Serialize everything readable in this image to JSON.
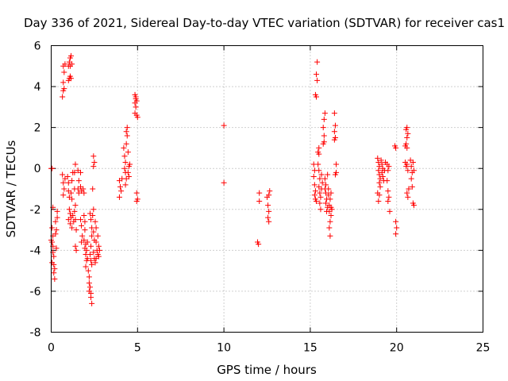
{
  "chart_data": {
    "type": "scatter",
    "title": "Day 336 of 2021, Sidereal Day-to-day VTEC variation (SDTVAR) for receiver cas1",
    "xlabel": "GPS time / hours",
    "ylabel": "SDTVAR / TECUs",
    "xlim": [
      0,
      25
    ],
    "ylim": [
      -8,
      6
    ],
    "xticks": [
      0,
      5,
      10,
      15,
      20,
      25
    ],
    "yticks": [
      -8,
      -6,
      -4,
      -2,
      0,
      2,
      4,
      6
    ],
    "xtick_labels": [
      "0",
      "5",
      "10",
      "15",
      "20",
      "25"
    ],
    "ytick_labels": [
      "-8",
      "-6",
      "-4",
      "-2",
      "0",
      "2",
      "4",
      "6"
    ],
    "grid": true,
    "marker": "plus",
    "color": "#ff0000",
    "series": [
      {
        "name": "SDTVAR",
        "points": [
          [
            0.0,
            0.0
          ],
          [
            0.05,
            0.0
          ],
          [
            0.1,
            -1.9
          ],
          [
            0.05,
            -2.9
          ],
          [
            0.1,
            -3.3
          ],
          [
            0.0,
            -3.5
          ],
          [
            0.05,
            -3.6
          ],
          [
            0.1,
            -3.8
          ],
          [
            0.1,
            -4.1
          ],
          [
            0.15,
            -4.3
          ],
          [
            0.05,
            -4.6
          ],
          [
            0.15,
            -4.7
          ],
          [
            0.2,
            -4.9
          ],
          [
            0.15,
            -5.1
          ],
          [
            0.2,
            -5.4
          ],
          [
            0.25,
            -2.6
          ],
          [
            0.3,
            -3.0
          ],
          [
            0.25,
            -3.2
          ],
          [
            0.3,
            -3.9
          ],
          [
            0.35,
            -2.4
          ],
          [
            0.35,
            -2.1
          ],
          [
            0.65,
            3.5
          ],
          [
            0.7,
            3.8
          ],
          [
            0.75,
            3.9
          ],
          [
            0.7,
            4.2
          ],
          [
            0.75,
            4.7
          ],
          [
            0.7,
            5.0
          ],
          [
            0.8,
            5.1
          ],
          [
            0.65,
            -0.3
          ],
          [
            0.7,
            -0.7
          ],
          [
            0.75,
            -1.0
          ],
          [
            0.7,
            -1.3
          ],
          [
            0.8,
            -0.5
          ],
          [
            1.0,
            4.3
          ],
          [
            1.05,
            4.4
          ],
          [
            1.1,
            4.5
          ],
          [
            1.0,
            5.0
          ],
          [
            1.05,
            5.2
          ],
          [
            1.1,
            5.4
          ],
          [
            1.15,
            5.5
          ],
          [
            1.1,
            5.0
          ],
          [
            1.2,
            5.1
          ],
          [
            1.15,
            4.4
          ],
          [
            0.95,
            -0.4
          ],
          [
            1.0,
            -0.7
          ],
          [
            1.0,
            -1.1
          ],
          [
            1.05,
            -1.4
          ],
          [
            1.05,
            -2.0
          ],
          [
            1.1,
            -2.2
          ],
          [
            1.0,
            -2.5
          ],
          [
            1.1,
            -2.7
          ],
          [
            1.15,
            -1.2
          ],
          [
            1.2,
            -1.5
          ],
          [
            1.15,
            -2.4
          ],
          [
            1.2,
            -2.9
          ],
          [
            1.25,
            -2.3
          ],
          [
            1.3,
            -2.6
          ],
          [
            1.25,
            -0.2
          ],
          [
            1.2,
            -0.6
          ],
          [
            1.35,
            -0.2
          ],
          [
            1.4,
            0.2
          ],
          [
            1.35,
            -1.0
          ],
          [
            1.4,
            -1.8
          ],
          [
            1.35,
            -2.1
          ],
          [
            1.4,
            -2.5
          ],
          [
            1.45,
            -3.0
          ],
          [
            1.4,
            -3.8
          ],
          [
            1.45,
            -4.0
          ],
          [
            1.55,
            -0.1
          ],
          [
            1.6,
            -0.6
          ],
          [
            1.55,
            -1.0
          ],
          [
            1.6,
            -1.2
          ],
          [
            1.7,
            -0.9
          ],
          [
            1.75,
            -1.1
          ],
          [
            1.7,
            -2.5
          ],
          [
            1.75,
            -2.8
          ],
          [
            1.8,
            -3.3
          ],
          [
            1.75,
            -3.6
          ],
          [
            1.7,
            -0.2
          ],
          [
            1.85,
            -1.0
          ],
          [
            1.9,
            -1.2
          ],
          [
            1.9,
            -2.3
          ],
          [
            1.95,
            -2.6
          ],
          [
            1.95,
            -3.0
          ],
          [
            1.9,
            -3.5
          ],
          [
            2.0,
            -3.7
          ],
          [
            1.95,
            -3.9
          ],
          [
            2.0,
            -4.2
          ],
          [
            2.05,
            -4.5
          ],
          [
            2.0,
            -4.8
          ],
          [
            2.1,
            -4.4
          ],
          [
            2.05,
            -4.0
          ],
          [
            2.1,
            -3.6
          ],
          [
            2.15,
            -5.0
          ],
          [
            2.2,
            -5.3
          ],
          [
            2.2,
            -5.6
          ],
          [
            2.25,
            -5.8
          ],
          [
            2.2,
            -6.0
          ],
          [
            2.3,
            -6.1
          ],
          [
            2.3,
            -6.3
          ],
          [
            2.35,
            -6.6
          ],
          [
            2.25,
            -4.2
          ],
          [
            2.3,
            -4.5
          ],
          [
            2.35,
            -4.7
          ],
          [
            2.3,
            -3.8
          ],
          [
            2.35,
            -3.3
          ],
          [
            2.25,
            -2.2
          ],
          [
            2.3,
            -2.5
          ],
          [
            2.35,
            -2.9
          ],
          [
            2.4,
            -1.0
          ],
          [
            2.45,
            -2.0
          ],
          [
            2.4,
            -2.3
          ],
          [
            2.45,
            -3.1
          ],
          [
            2.5,
            -3.5
          ],
          [
            2.45,
            -4.1
          ],
          [
            2.5,
            -4.4
          ],
          [
            2.55,
            -4.6
          ],
          [
            2.55,
            -2.6
          ],
          [
            2.6,
            -2.9
          ],
          [
            2.6,
            -3.6
          ],
          [
            2.65,
            -4.0
          ],
          [
            2.6,
            -4.4
          ],
          [
            2.7,
            -4.2
          ],
          [
            2.7,
            -3.3
          ],
          [
            2.45,
            0.1
          ],
          [
            2.5,
            0.3
          ],
          [
            2.45,
            0.6
          ],
          [
            2.75,
            -3.8
          ],
          [
            2.8,
            -4.0
          ],
          [
            2.75,
            -4.3
          ],
          [
            3.95,
            -0.6
          ],
          [
            4.0,
            -0.9
          ],
          [
            3.95,
            -1.4
          ],
          [
            4.05,
            -1.1
          ],
          [
            4.1,
            -0.5
          ],
          [
            4.2,
            1.0
          ],
          [
            4.25,
            0.6
          ],
          [
            4.3,
            0.3
          ],
          [
            4.25,
            0.0
          ],
          [
            4.3,
            -0.2
          ],
          [
            4.35,
            -0.5
          ],
          [
            4.3,
            -0.8
          ],
          [
            4.35,
            1.2
          ],
          [
            4.4,
            1.6
          ],
          [
            4.35,
            1.8
          ],
          [
            4.4,
            2.0
          ],
          [
            4.45,
            0.8
          ],
          [
            4.5,
            0.1
          ],
          [
            4.45,
            -0.2
          ],
          [
            4.5,
            -0.4
          ],
          [
            4.55,
            0.2
          ],
          [
            4.85,
            3.6
          ],
          [
            4.9,
            3.5
          ],
          [
            4.85,
            3.2
          ],
          [
            4.9,
            3.0
          ],
          [
            4.85,
            2.7
          ],
          [
            4.95,
            3.3
          ],
          [
            4.95,
            2.6
          ],
          [
            5.0,
            2.5
          ],
          [
            4.9,
            3.4
          ],
          [
            4.95,
            -1.2
          ],
          [
            5.0,
            -1.5
          ],
          [
            4.95,
            -1.6
          ],
          [
            10.0,
            2.1
          ],
          [
            10.0,
            -0.7
          ],
          [
            11.95,
            -3.6
          ],
          [
            12.0,
            -3.7
          ],
          [
            12.05,
            -1.2
          ],
          [
            12.05,
            -1.6
          ],
          [
            12.5,
            -1.4
          ],
          [
            12.55,
            -1.8
          ],
          [
            12.6,
            -2.1
          ],
          [
            12.55,
            -2.4
          ],
          [
            12.6,
            -2.6
          ],
          [
            12.65,
            -1.1
          ],
          [
            12.6,
            -1.3
          ],
          [
            15.2,
            0.2
          ],
          [
            15.25,
            -0.1
          ],
          [
            15.2,
            -0.4
          ],
          [
            15.25,
            -0.8
          ],
          [
            15.3,
            -1.1
          ],
          [
            15.25,
            -1.3
          ],
          [
            15.3,
            -1.5
          ],
          [
            15.35,
            -1.6
          ],
          [
            15.3,
            3.6
          ],
          [
            15.35,
            3.5
          ],
          [
            15.4,
            4.3
          ],
          [
            15.35,
            4.6
          ],
          [
            15.4,
            5.2
          ],
          [
            15.45,
            0.8
          ],
          [
            15.5,
            1.0
          ],
          [
            15.5,
            0.7
          ],
          [
            15.45,
            0.2
          ],
          [
            15.5,
            -0.1
          ],
          [
            15.55,
            -0.5
          ],
          [
            15.5,
            -0.9
          ],
          [
            15.55,
            -1.2
          ],
          [
            15.6,
            -1.4
          ],
          [
            15.55,
            -1.7
          ],
          [
            15.6,
            -2.0
          ],
          [
            15.65,
            -1.0
          ],
          [
            15.7,
            -0.7
          ],
          [
            15.65,
            -0.3
          ],
          [
            15.75,
            1.2
          ],
          [
            15.8,
            1.6
          ],
          [
            15.75,
            2.0
          ],
          [
            15.8,
            2.4
          ],
          [
            15.85,
            2.7
          ],
          [
            15.8,
            1.3
          ],
          [
            15.85,
            -0.5
          ],
          [
            15.9,
            -0.8
          ],
          [
            15.85,
            -1.0
          ],
          [
            15.9,
            -1.2
          ],
          [
            15.95,
            -1.5
          ],
          [
            15.9,
            -1.7
          ],
          [
            16.0,
            -1.9
          ],
          [
            15.95,
            -2.1
          ],
          [
            16.0,
            -0.3
          ],
          [
            16.05,
            -1.0
          ],
          [
            16.05,
            -1.3
          ],
          [
            16.1,
            -1.8
          ],
          [
            16.1,
            -2.1
          ],
          [
            16.15,
            -2.6
          ],
          [
            16.1,
            -2.9
          ],
          [
            16.15,
            -3.3
          ],
          [
            16.15,
            -1.5
          ],
          [
            16.2,
            -1.9
          ],
          [
            16.2,
            -2.3
          ],
          [
            16.25,
            -2.0
          ],
          [
            16.2,
            -1.2
          ],
          [
            16.4,
            2.7
          ],
          [
            16.45,
            2.1
          ],
          [
            16.4,
            1.8
          ],
          [
            16.45,
            1.5
          ],
          [
            16.4,
            1.4
          ],
          [
            16.5,
            -0.2
          ],
          [
            16.45,
            -0.3
          ],
          [
            16.5,
            0.2
          ],
          [
            18.9,
            0.5
          ],
          [
            18.95,
            0.3
          ],
          [
            19.0,
            0.1
          ],
          [
            18.95,
            -0.1
          ],
          [
            19.0,
            -0.3
          ],
          [
            19.05,
            -0.5
          ],
          [
            19.0,
            -0.7
          ],
          [
            19.05,
            -0.9
          ],
          [
            18.9,
            -1.2
          ],
          [
            18.95,
            -1.6
          ],
          [
            19.0,
            -1.3
          ],
          [
            19.1,
            0.4
          ],
          [
            19.15,
            0.2
          ],
          [
            19.2,
            0.0
          ],
          [
            19.15,
            -0.2
          ],
          [
            19.2,
            -0.4
          ],
          [
            19.25,
            -0.6
          ],
          [
            19.3,
            -0.1
          ],
          [
            19.35,
            0.3
          ],
          [
            19.45,
            0.2
          ],
          [
            19.5,
            -0.1
          ],
          [
            19.45,
            -0.6
          ],
          [
            19.5,
            -1.1
          ],
          [
            19.55,
            -1.4
          ],
          [
            19.5,
            -1.6
          ],
          [
            19.6,
            -2.1
          ],
          [
            19.55,
            0.1
          ],
          [
            19.9,
            1.1
          ],
          [
            19.95,
            1.0
          ],
          [
            19.95,
            -2.6
          ],
          [
            20.0,
            -2.9
          ],
          [
            19.95,
            -3.2
          ],
          [
            20.5,
            1.1
          ],
          [
            20.55,
            1.2
          ],
          [
            20.6,
            1.5
          ],
          [
            20.55,
            1.9
          ],
          [
            20.6,
            2.0
          ],
          [
            20.65,
            1.7
          ],
          [
            20.6,
            1.0
          ],
          [
            20.5,
            0.3
          ],
          [
            20.55,
            0.1
          ],
          [
            20.6,
            0.2
          ],
          [
            20.65,
            -0.1
          ],
          [
            20.6,
            -1.2
          ],
          [
            20.65,
            -1.4
          ],
          [
            20.7,
            -1.0
          ],
          [
            20.8,
            0.4
          ],
          [
            20.85,
            0.1
          ],
          [
            20.9,
            -0.2
          ],
          [
            20.85,
            -0.5
          ],
          [
            20.9,
            -0.9
          ],
          [
            20.95,
            -1.7
          ],
          [
            21.0,
            -1.8
          ],
          [
            20.95,
            0.3
          ],
          [
            21.0,
            -0.1
          ]
        ]
      }
    ]
  }
}
